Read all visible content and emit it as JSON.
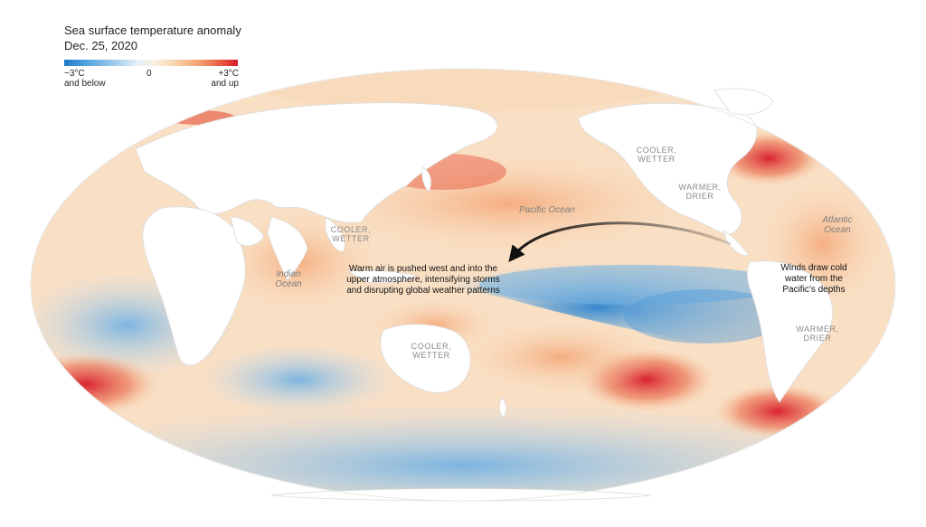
{
  "header": {
    "title": "Sea surface temperature anomaly",
    "date": "Dec. 25, 2020"
  },
  "legend": {
    "min_value": "−3°C",
    "min_note": "and below",
    "mid_value": "0",
    "max_value": "+3°C",
    "max_note": "and up",
    "colors": {
      "cold": "#1f78c8",
      "neutral": "#f7f7f7",
      "warm": "#d7192a"
    }
  },
  "map": {
    "projection": "Mollweide",
    "ocean_labels": {
      "pacific": "Pacific Ocean",
      "indian": "Indian Ocean",
      "atlantic": "Atlantic Ocean"
    },
    "region_labels": {
      "cooler_wetter_north_america": "COOLER, WETTER",
      "warmer_drier_central_america": "WARMER, DRIER",
      "cooler_wetter_se_asia": "COOLER, WETTER",
      "cooler_wetter_australia": "COOLER, WETTER",
      "warmer_drier_south_america": "WARMER, DRIER"
    },
    "annotations": {
      "warm_air": "Warm air is pushed west and into the upper atmosphere, intensifying storms and disrupting global weather patterns",
      "winds": "Winds draw cold water from the Pacific’s depths"
    }
  }
}
